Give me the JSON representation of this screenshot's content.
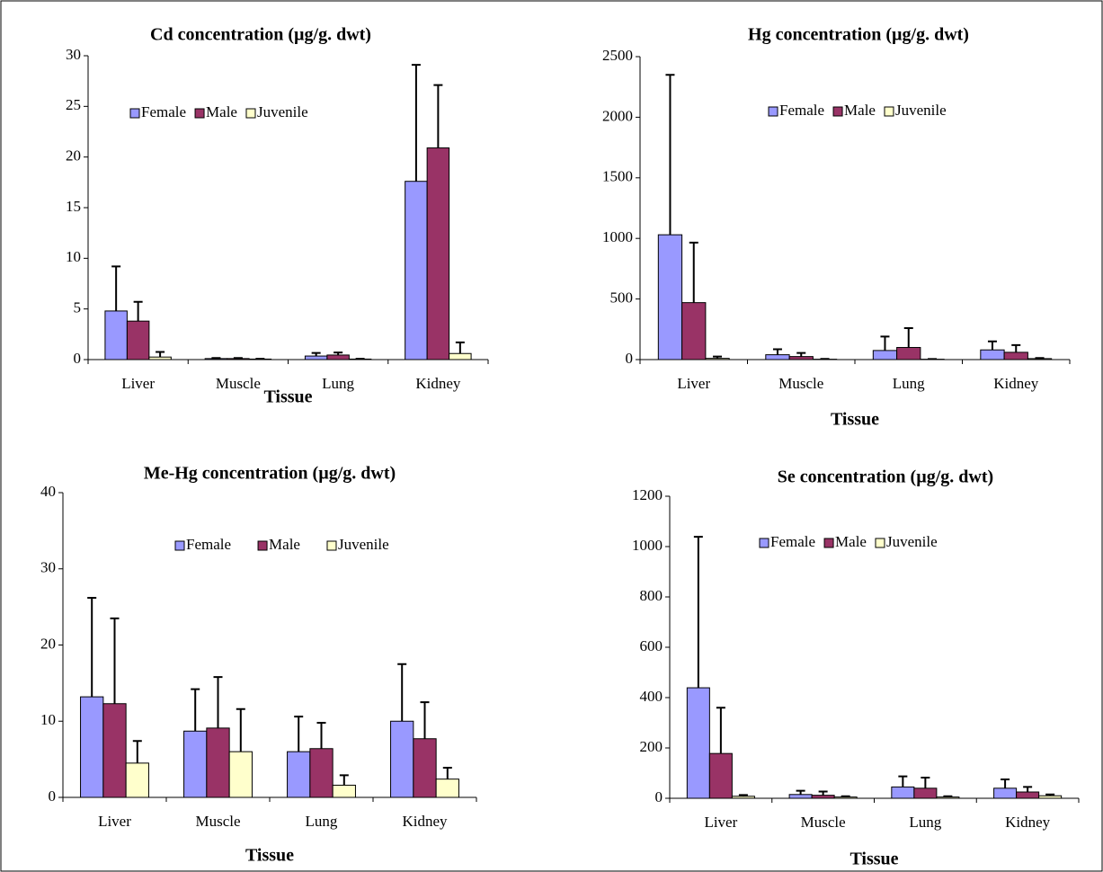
{
  "chart_data": [
    {
      "type": "bar",
      "title": "Cd concentration (µg/g. dwt)",
      "x_label": "Tissue",
      "categories": [
        "Liver",
        "Muscle",
        "Lung",
        "Kidney"
      ],
      "series": [
        {
          "name": "Female",
          "color": "#9999ff",
          "values": [
            4.8,
            0.1,
            0.35,
            17.6
          ],
          "errors": [
            4.4,
            0.05,
            0.3,
            11.5
          ]
        },
        {
          "name": "Male",
          "color": "#993366",
          "values": [
            3.8,
            0.1,
            0.45,
            20.9
          ],
          "errors": [
            1.9,
            0.05,
            0.25,
            6.2
          ]
        },
        {
          "name": "Juvenile",
          "color": "#ffffcc",
          "values": [
            0.25,
            0.05,
            0.05,
            0.6
          ],
          "errors": [
            0.5,
            0.03,
            0.03,
            1.1
          ]
        }
      ],
      "ylim": [
        0,
        30
      ],
      "yticks": [
        0,
        5,
        10,
        15,
        20,
        25,
        30
      ]
    },
    {
      "type": "bar",
      "title": "Hg concentration (µg/g. dwt)",
      "x_label": "Tissue",
      "categories": [
        "Liver",
        "Muscle",
        "Lung",
        "Kidney"
      ],
      "series": [
        {
          "name": "Female",
          "color": "#9999ff",
          "values": [
            1030,
            40,
            75,
            80
          ],
          "errors": [
            1320,
            45,
            115,
            70
          ]
        },
        {
          "name": "Male",
          "color": "#993366",
          "values": [
            470,
            25,
            100,
            60
          ],
          "errors": [
            495,
            30,
            160,
            60
          ]
        },
        {
          "name": "Juvenile",
          "color": "#ffffcc",
          "values": [
            10,
            3,
            3,
            8
          ],
          "errors": [
            15,
            3,
            2,
            5
          ]
        }
      ],
      "ylim": [
        0,
        2500
      ],
      "yticks": [
        0,
        500,
        1000,
        1500,
        2000,
        2500
      ]
    },
    {
      "type": "bar",
      "title": "Me-Hg concentration (µg/g. dwt)",
      "x_label": "Tissue",
      "categories": [
        "Liver",
        "Muscle",
        "Lung",
        "Kidney"
      ],
      "series": [
        {
          "name": "Female",
          "color": "#9999ff",
          "values": [
            13.2,
            8.7,
            6.0,
            10.0
          ],
          "errors": [
            13.0,
            5.5,
            4.6,
            7.5
          ]
        },
        {
          "name": "Male",
          "color": "#993366",
          "values": [
            12.3,
            9.1,
            6.4,
            7.7
          ],
          "errors": [
            11.2,
            6.7,
            3.4,
            4.8
          ]
        },
        {
          "name": "Juvenile",
          "color": "#ffffcc",
          "values": [
            4.5,
            6.0,
            1.6,
            2.4
          ],
          "errors": [
            2.9,
            5.6,
            1.3,
            1.5
          ]
        }
      ],
      "ylim": [
        0,
        40
      ],
      "yticks": [
        0,
        10,
        20,
        30,
        40
      ]
    },
    {
      "type": "bar",
      "title": "Se concentration (µg/g. dwt)",
      "x_label": "Tissue",
      "categories": [
        "Liver",
        "Muscle",
        "Lung",
        "Kidney"
      ],
      "series": [
        {
          "name": "Female",
          "color": "#9999ff",
          "values": [
            439,
            15,
            45,
            40
          ],
          "errors": [
            600,
            15,
            42,
            35
          ]
        },
        {
          "name": "Male",
          "color": "#993366",
          "values": [
            178,
            12,
            40,
            25
          ],
          "errors": [
            182,
            15,
            42,
            20
          ]
        },
        {
          "name": "Juvenile",
          "color": "#ffffcc",
          "values": [
            8,
            5,
            5,
            10
          ],
          "errors": [
            5,
            3,
            3,
            5
          ]
        }
      ],
      "ylim": [
        0,
        1200
      ],
      "yticks": [
        0,
        200,
        400,
        600,
        800,
        1000,
        1200
      ]
    }
  ]
}
